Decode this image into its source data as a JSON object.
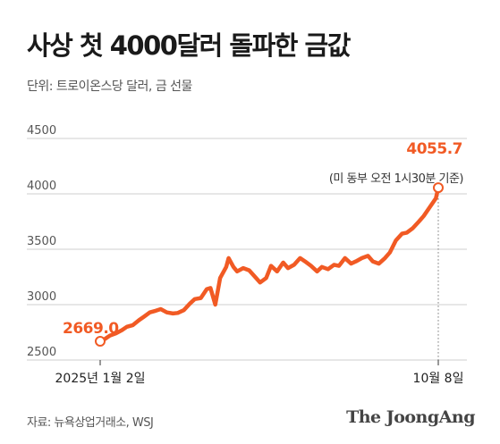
{
  "header": {
    "title": "사상 첫 4000달러 돌파한 금값",
    "unit": "단위: 트로이온스당 달러, 금 선물"
  },
  "footer": {
    "source": "자료: 뉴욕상업거래소, WSJ",
    "brand": "The JoongAng"
  },
  "colors": {
    "line": "#f15a24",
    "grid": "#cfcfcf",
    "text": "#222222"
  },
  "chart_data": {
    "type": "line",
    "title": "사상 첫 4000달러 돌파한 금값",
    "xlabel": "",
    "ylabel": "단위: 트로이온스당 달러, 금 선물",
    "ylim": [
      2500,
      4500
    ],
    "yticks": [
      2500,
      3000,
      3500,
      4000,
      4500
    ],
    "xlim": [
      "2025-01-02",
      "2025-10-08"
    ],
    "xtick_labels": [
      {
        "date": "2025-01-02",
        "label": "2025년 1월 2일"
      },
      {
        "date": "2025-10-08",
        "label": "10월 8일"
      }
    ],
    "grid": true,
    "annotations": {
      "start": {
        "date": "2025-01-02",
        "value": 2669.0,
        "label": "2669.0"
      },
      "end": {
        "date": "2025-10-08",
        "value": 4055.7,
        "label": "4055.7",
        "note": "(미 동부 오전 1시30분 기준)"
      }
    },
    "series": [
      {
        "x": [
          "2025-01-02",
          "2025-01-06",
          "2025-01-10",
          "2025-01-15",
          "2025-01-20",
          "2025-01-24",
          "2025-01-29",
          "2025-02-03",
          "2025-02-07",
          "2025-02-12",
          "2025-02-17",
          "2025-02-21",
          "2025-02-26",
          "2025-03-03",
          "2025-03-07",
          "2025-03-12",
          "2025-03-17",
          "2025-03-21",
          "2025-03-26",
          "2025-03-31",
          "2025-04-03",
          "2025-04-07",
          "2025-04-11",
          "2025-04-16",
          "2025-04-18",
          "2025-04-22",
          "2025-04-25",
          "2025-04-30",
          "2025-05-05",
          "2025-05-09",
          "2025-05-14",
          "2025-05-19",
          "2025-05-23",
          "2025-05-28",
          "2025-06-02",
          "2025-06-06",
          "2025-06-11",
          "2025-06-16",
          "2025-06-20",
          "2025-06-25",
          "2025-06-30",
          "2025-07-04",
          "2025-07-09",
          "2025-07-14",
          "2025-07-18",
          "2025-07-23",
          "2025-07-28",
          "2025-08-01",
          "2025-08-06",
          "2025-08-11",
          "2025-08-15",
          "2025-08-20",
          "2025-08-25",
          "2025-08-29",
          "2025-09-03",
          "2025-09-08",
          "2025-09-12",
          "2025-09-17",
          "2025-09-22",
          "2025-09-26",
          "2025-10-01",
          "2025-10-06",
          "2025-10-08"
        ],
        "values": [
          2669,
          2690,
          2720,
          2740,
          2770,
          2800,
          2815,
          2860,
          2890,
          2930,
          2945,
          2960,
          2930,
          2920,
          2925,
          2950,
          3010,
          3050,
          3060,
          3140,
          3150,
          3000,
          3240,
          3340,
          3420,
          3340,
          3300,
          3330,
          3310,
          3260,
          3200,
          3240,
          3350,
          3300,
          3380,
          3330,
          3360,
          3420,
          3390,
          3350,
          3300,
          3340,
          3320,
          3360,
          3350,
          3420,
          3370,
          3390,
          3420,
          3440,
          3390,
          3370,
          3420,
          3470,
          3580,
          3640,
          3650,
          3690,
          3750,
          3800,
          3880,
          3960,
          4055.7
        ]
      }
    ]
  }
}
